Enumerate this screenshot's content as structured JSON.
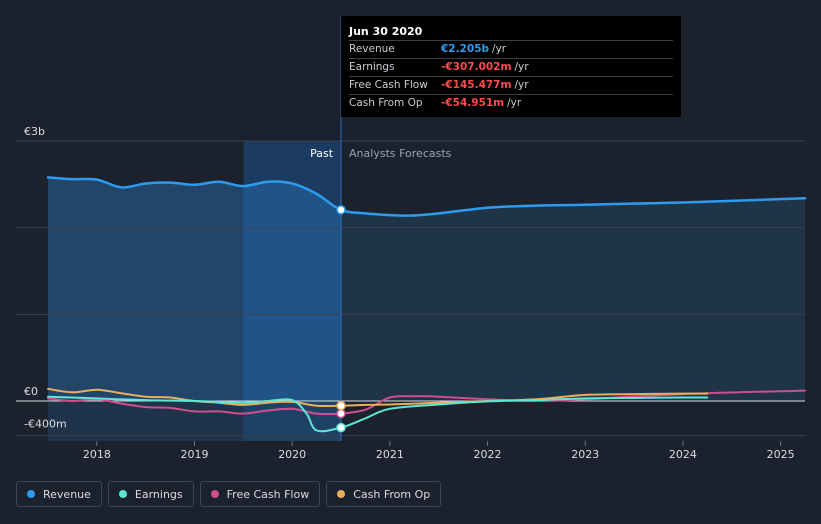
{
  "tooltip": {
    "date": "Jun 30 2020",
    "rows": [
      {
        "label": "Revenue",
        "value": "€2.205b",
        "unit": "/yr",
        "color": "#2d9cf0"
      },
      {
        "label": "Earnings",
        "value": "-€307.002m",
        "unit": "/yr",
        "color": "#ff4b4b"
      },
      {
        "label": "Free Cash Flow",
        "value": "-€145.477m",
        "unit": "/yr",
        "color": "#ff4b4b"
      },
      {
        "label": "Cash From Op",
        "value": "-€54.951m",
        "unit": "/yr",
        "color": "#ff4b4b"
      }
    ]
  },
  "labels": {
    "past": "Past",
    "forecast": "Analysts Forecasts"
  },
  "legend": [
    {
      "name": "Revenue",
      "color": "#2d9cf0"
    },
    {
      "name": "Earnings",
      "color": "#5ee6d4"
    },
    {
      "name": "Free Cash Flow",
      "color": "#d04d8e"
    },
    {
      "name": "Cash From Op",
      "color": "#e8b05a"
    }
  ],
  "chart_data": {
    "type": "line",
    "currency": "€",
    "unit": "m",
    "ylim": [
      -400,
      3000
    ],
    "xlim": [
      2017.5,
      2025.25
    ],
    "y_tick_labels": [
      {
        "value": 3000,
        "label": "€3b"
      },
      {
        "value": 0,
        "label": "€0"
      },
      {
        "value": -400,
        "label": "-€400m"
      }
    ],
    "gridlines": [
      3000,
      2000,
      1000,
      0,
      -400
    ],
    "x_ticks": [
      2018,
      2019,
      2020,
      2021,
      2022,
      2023,
      2024,
      2025
    ],
    "divider_x": 2020.5,
    "highlight_start_x": 2019.5,
    "series": [
      {
        "name": "Revenue",
        "color": "#2d9cf0",
        "points": [
          [
            2017.5,
            2580
          ],
          [
            2017.75,
            2560
          ],
          [
            2018.0,
            2555
          ],
          [
            2018.25,
            2465
          ],
          [
            2018.5,
            2510
          ],
          [
            2018.75,
            2520
          ],
          [
            2019.0,
            2495
          ],
          [
            2019.25,
            2530
          ],
          [
            2019.5,
            2480
          ],
          [
            2019.75,
            2530
          ],
          [
            2020.0,
            2510
          ],
          [
            2020.25,
            2390
          ],
          [
            2020.5,
            2205
          ],
          [
            2020.75,
            2165
          ],
          [
            2021.0,
            2145
          ],
          [
            2021.25,
            2140
          ],
          [
            2021.5,
            2165
          ],
          [
            2022.0,
            2230
          ],
          [
            2022.5,
            2255
          ],
          [
            2023.0,
            2265
          ],
          [
            2024.0,
            2290
          ],
          [
            2025.25,
            2340
          ]
        ]
      },
      {
        "name": "Earnings",
        "color": "#5ee6d4",
        "points": [
          [
            2017.5,
            50
          ],
          [
            2018.0,
            30
          ],
          [
            2018.5,
            10
          ],
          [
            2019.0,
            0
          ],
          [
            2019.5,
            -20
          ],
          [
            2019.75,
            0
          ],
          [
            2020.0,
            10
          ],
          [
            2020.15,
            -150
          ],
          [
            2020.25,
            -340
          ],
          [
            2020.5,
            -307
          ],
          [
            2020.75,
            -200
          ],
          [
            2021.0,
            -90
          ],
          [
            2021.5,
            -40
          ],
          [
            2022.0,
            -5
          ],
          [
            2022.5,
            10
          ],
          [
            2023.0,
            30
          ],
          [
            2023.5,
            35
          ],
          [
            2024.0,
            40
          ],
          [
            2024.25,
            40
          ]
        ]
      },
      {
        "name": "Free Cash Flow",
        "color": "#d04d8e",
        "points": [
          [
            2017.5,
            30
          ],
          [
            2017.75,
            0
          ],
          [
            2018.0,
            20
          ],
          [
            2018.25,
            -30
          ],
          [
            2018.5,
            -70
          ],
          [
            2018.75,
            -80
          ],
          [
            2019.0,
            -120
          ],
          [
            2019.25,
            -120
          ],
          [
            2019.5,
            -145
          ],
          [
            2019.75,
            -110
          ],
          [
            2020.0,
            -90
          ],
          [
            2020.25,
            -145
          ],
          [
            2020.5,
            -145
          ],
          [
            2020.75,
            -100
          ],
          [
            2021.0,
            40
          ],
          [
            2021.25,
            55
          ],
          [
            2021.5,
            50
          ],
          [
            2022.0,
            20
          ],
          [
            2022.5,
            0
          ],
          [
            2023.0,
            20
          ],
          [
            2024.0,
            80
          ],
          [
            2025.25,
            120
          ]
        ]
      },
      {
        "name": "Cash From Op",
        "color": "#e8b05a",
        "points": [
          [
            2017.5,
            140
          ],
          [
            2017.75,
            100
          ],
          [
            2018.0,
            130
          ],
          [
            2018.25,
            90
          ],
          [
            2018.5,
            50
          ],
          [
            2018.75,
            40
          ],
          [
            2019.0,
            0
          ],
          [
            2019.25,
            -20
          ],
          [
            2019.5,
            -45
          ],
          [
            2019.75,
            -20
          ],
          [
            2020.0,
            -10
          ],
          [
            2020.25,
            -55
          ],
          [
            2020.5,
            -55
          ],
          [
            2020.75,
            -45
          ],
          [
            2021.0,
            -40
          ],
          [
            2021.5,
            -20
          ],
          [
            2022.0,
            0
          ],
          [
            2022.5,
            20
          ],
          [
            2023.0,
            70
          ],
          [
            2023.5,
            80
          ],
          [
            2024.0,
            85
          ],
          [
            2024.25,
            85
          ]
        ]
      }
    ],
    "highlight_points": [
      {
        "series": "Revenue",
        "x": 2020.5,
        "y": 2205
      },
      {
        "series": "Earnings",
        "x": 2020.5,
        "y": -307
      },
      {
        "series": "Free Cash Flow",
        "x": 2020.5,
        "y": -145
      },
      {
        "series": "Cash From Op",
        "x": 2020.5,
        "y": -55
      }
    ]
  }
}
